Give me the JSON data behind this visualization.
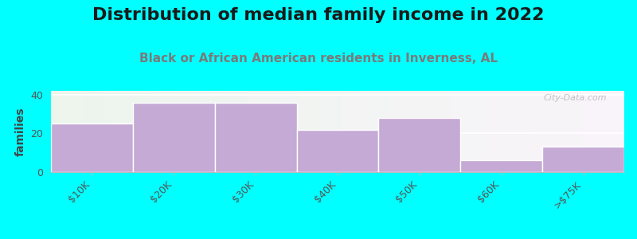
{
  "title": "Distribution of median family income in 2022",
  "subtitle": "Black or African American residents in Inverness, AL",
  "categories": [
    "$10K",
    "$20K",
    "$30K",
    "$40K",
    "$50K",
    "$60K",
    ">$75K"
  ],
  "values": [
    25,
    36,
    36,
    22,
    28,
    6,
    13
  ],
  "bar_color": "#c5aad5",
  "ylabel": "families",
  "ylim": [
    0,
    42
  ],
  "yticks": [
    0,
    20,
    40
  ],
  "background_color": "#00ffff",
  "title_fontsize": 16,
  "subtitle_fontsize": 11,
  "subtitle_color": "#7a7a7a",
  "title_color": "#1a1a1a",
  "watermark": "City-Data.com"
}
